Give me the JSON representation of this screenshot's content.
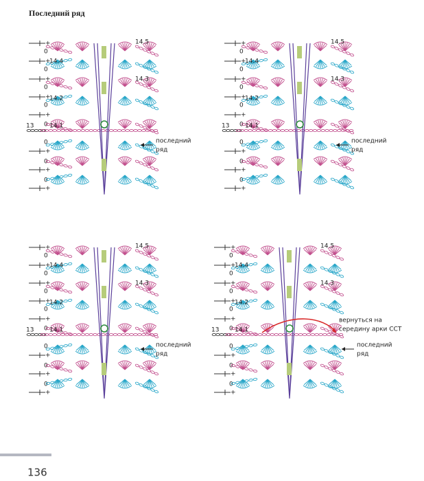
{
  "title": "Последний ряд",
  "page_number": "136",
  "panels": [
    {
      "row_labels": [
        "14.5",
        "14.4",
        "14.3",
        "14.2",
        "14.1",
        "13"
      ],
      "zeros": [
        "0",
        "0",
        "0",
        "0",
        "0",
        "0",
        "0",
        "0"
      ],
      "last_row_note": [
        "последний",
        "ряд"
      ]
    },
    {
      "row_labels": [
        "14.5",
        "14.4",
        "14.3",
        "14.2",
        "14.1",
        "13"
      ],
      "zeros": [
        "0",
        "0",
        "0",
        "0",
        "0",
        "0",
        "0",
        "0"
      ],
      "last_row_note": [
        "последний",
        "ряд"
      ]
    },
    {
      "row_labels": [
        "14.5",
        "14.4",
        "14.3",
        "14.2",
        "14.1",
        "13"
      ],
      "zeros": [
        "0",
        "0",
        "0",
        "0",
        "0",
        "0",
        "0",
        "0"
      ],
      "last_row_note": [
        "последний",
        "ряд"
      ]
    },
    {
      "row_labels": [
        "14.5",
        "14.4",
        "14.3",
        "14.2",
        "14.1",
        "13"
      ],
      "zeros": [
        "0",
        "0",
        "0",
        "0",
        "0",
        "0",
        "0",
        "0"
      ],
      "last_row_note": [
        "последний",
        "ряд"
      ],
      "return_note": [
        "вернуться на",
        "середину арки ССТ"
      ]
    }
  ]
}
